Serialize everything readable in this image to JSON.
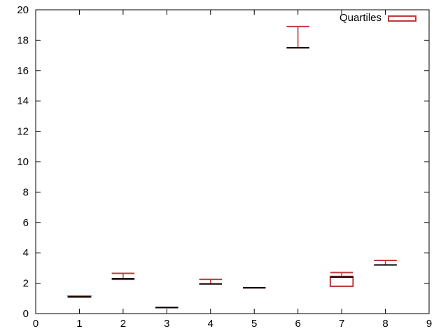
{
  "chart_data": {
    "type": "candlestick",
    "title": "",
    "xlabel": "",
    "ylabel": "",
    "xlim": [
      0,
      9
    ],
    "ylim": [
      0,
      20
    ],
    "x_ticks": [
      0,
      1,
      2,
      3,
      4,
      5,
      6,
      7,
      8,
      9
    ],
    "y_ticks": [
      0,
      2,
      4,
      6,
      8,
      10,
      12,
      14,
      16,
      18,
      20
    ],
    "grid": false,
    "legend": {
      "position": "top-right",
      "entries": [
        "Quartiles"
      ]
    },
    "colors": {
      "box": "#c0393b",
      "median": "#000000",
      "axis": "#000000"
    },
    "series": [
      {
        "name": "Quartiles",
        "points": [
          {
            "x": 1,
            "min": 1.1,
            "q1": 1.1,
            "median": 1.1,
            "q3": 1.15,
            "max": 1.15
          },
          {
            "x": 2,
            "min": 2.25,
            "q1": 2.3,
            "median": 2.3,
            "q3": 2.3,
            "max": 2.65
          },
          {
            "x": 3,
            "min": 0.4,
            "q1": 0.4,
            "median": 0.4,
            "q3": 0.4,
            "max": 0.4
          },
          {
            "x": 4,
            "min": 1.95,
            "q1": 1.95,
            "median": 1.95,
            "q3": 1.95,
            "max": 2.25
          },
          {
            "x": 5,
            "min": 1.7,
            "q1": 1.7,
            "median": 1.7,
            "q3": 1.7,
            "max": 1.7
          },
          {
            "x": 6,
            "min": 17.5,
            "q1": 17.5,
            "median": 17.5,
            "q3": 17.5,
            "max": 18.9
          },
          {
            "x": 7,
            "min": 1.8,
            "q1": 1.8,
            "median": 2.4,
            "q3": 2.45,
            "max": 2.7
          },
          {
            "x": 8,
            "min": 3.2,
            "q1": 3.2,
            "median": 3.2,
            "q3": 3.2,
            "max": 3.5
          }
        ]
      }
    ]
  }
}
